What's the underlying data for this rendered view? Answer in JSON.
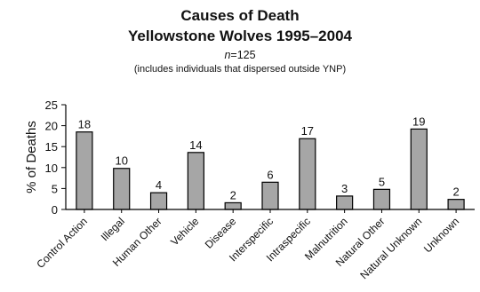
{
  "chart_data": {
    "type": "bar",
    "title": "Causes of Death",
    "subtitle": "Yellowstone Wolves 1995–2004",
    "n_label": "n",
    "n_value": "=125",
    "note": "(includes individuals that dispersed outside YNP)",
    "ylabel": "% of Deaths",
    "xlabel": "",
    "ylim": [
      0,
      25
    ],
    "yticks": [
      0,
      5,
      10,
      15,
      20,
      25
    ],
    "grid": false,
    "categories": [
      "Control Action",
      "Illegal",
      "Human Other",
      "Vehicle",
      "Disease",
      "Interspecific",
      "Intraspecific",
      "Malnutrition",
      "Natural Other",
      "Natural Unknown",
      "Unknown"
    ],
    "values": [
      18.5,
      9.8,
      4.0,
      13.6,
      1.6,
      6.5,
      16.9,
      3.2,
      4.8,
      19.2,
      2.4
    ],
    "data_labels": [
      "18",
      "10",
      "4",
      "14",
      "2",
      "6",
      "17",
      "3",
      "5",
      "19",
      "2"
    ],
    "colors": {
      "bar_fill": "#a6a6a6",
      "bar_stroke": "#000000",
      "axis": "#000000"
    }
  }
}
